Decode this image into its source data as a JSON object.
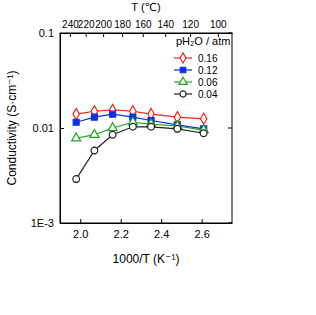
{
  "chart_data": {
    "type": "line",
    "x_label": "1000/T (K⁻¹)",
    "y_label": "Conductivity (S·cm⁻¹)",
    "x2_label": "T (℃)",
    "legend_title": "pH₂O / atm",
    "legend": "upper right",
    "log": "y",
    "xlim": [
      1.9,
      2.75
    ],
    "ylim": [
      0.001,
      0.1
    ],
    "xticks": [
      {
        "value": 2,
        "label": "2.0"
      },
      2.2,
      2.4,
      2.6
    ],
    "x2ticks": [
      {
        "value": 1.949,
        "label": "240"
      },
      {
        "value": 2.027,
        "label": "220"
      },
      {
        "value": 2.113,
        "label": "200"
      },
      {
        "value": 2.207,
        "label": "180"
      },
      {
        "value": 2.309,
        "label": "160"
      },
      {
        "value": 2.42,
        "label": "140"
      },
      {
        "value": 2.543,
        "label": "120"
      },
      {
        "value": 2.68,
        "label": "100"
      }
    ],
    "yticks": [
      {
        "value": 0.001,
        "label": "1E-3"
      },
      0.01,
      0.1
    ],
    "x": [
      1.98,
      2.07,
      2.16,
      2.26,
      2.35,
      2.48,
      2.61
    ],
    "series": [
      {
        "name": "0.16",
        "color": "#e8281e",
        "marker": "open-diamond",
        "values": [
          0.014,
          0.015,
          0.0155,
          0.015,
          0.014,
          0.013,
          0.0125
        ]
      },
      {
        "name": "0.12",
        "color": "#1030e0",
        "marker": "filled-square",
        "values": [
          0.0115,
          0.013,
          0.014,
          0.013,
          0.012,
          0.0108,
          0.0098
        ]
      },
      {
        "name": "0.06",
        "color": "#20a020",
        "marker": "open-triangle",
        "values": [
          0.0078,
          0.0085,
          0.01,
          0.0115,
          0.011,
          0.0105,
          0.0095
        ]
      },
      {
        "name": "0.04",
        "color": "#222222",
        "marker": "open-circle",
        "values": [
          0.0029,
          0.0058,
          0.0085,
          0.0103,
          0.0103,
          0.0098,
          0.0088
        ]
      }
    ]
  }
}
